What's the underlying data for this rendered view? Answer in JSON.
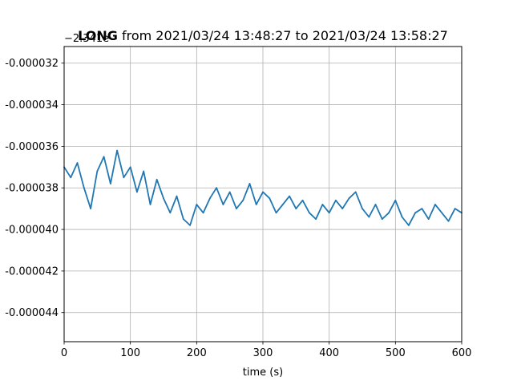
{
  "chart_data": {
    "type": "line",
    "title_bold": "LONG",
    "title_rest": " from 2021/03/24 13:48:27 to 2021/03/24 13:58:27",
    "xlabel": "time (s)",
    "ylabel": "",
    "y_offset_label": "−2.341e",
    "xlim": [
      0,
      600
    ],
    "ylim": [
      -4.54e-05,
      -3.12e-05
    ],
    "x_ticks": [
      0,
      100,
      200,
      300,
      400,
      500,
      600
    ],
    "x_tick_labels": [
      "0",
      "100",
      "200",
      "300",
      "400",
      "500",
      "600"
    ],
    "y_ticks": [
      -3.2e-05,
      -3.4e-05,
      -3.6e-05,
      -3.8e-05,
      -4e-05,
      -4.2e-05,
      -4.4e-05
    ],
    "y_tick_labels": [
      "-0.000032",
      "-0.000034",
      "-0.000036",
      "-0.000038",
      "-0.000040",
      "-0.000042",
      "-0.000044"
    ],
    "grid": true,
    "series": [
      {
        "color": "#1f77b4",
        "x": [
          0,
          10,
          20,
          30,
          40,
          50,
          60,
          70,
          80,
          90,
          100,
          110,
          120,
          130,
          140,
          150,
          160,
          170,
          180,
          190,
          200,
          210,
          220,
          230,
          240,
          250,
          260,
          270,
          280,
          290,
          300,
          310,
          320,
          330,
          340,
          350,
          360,
          370,
          380,
          390,
          400,
          410,
          420,
          430,
          440,
          450,
          460,
          470,
          480,
          490,
          500,
          510,
          520,
          530,
          540,
          550,
          560,
          570,
          580,
          590,
          600
        ],
        "y": [
          -3.7e-05,
          -3.75e-05,
          -3.68e-05,
          -3.8e-05,
          -3.9e-05,
          -3.72e-05,
          -3.65e-05,
          -3.78e-05,
          -3.62e-05,
          -3.75e-05,
          -3.7e-05,
          -3.82e-05,
          -3.72e-05,
          -3.88e-05,
          -3.76e-05,
          -3.85e-05,
          -3.92e-05,
          -3.84e-05,
          -3.95e-05,
          -3.98e-05,
          -3.88e-05,
          -3.92e-05,
          -3.85e-05,
          -3.8e-05,
          -3.88e-05,
          -3.82e-05,
          -3.9e-05,
          -3.86e-05,
          -3.78e-05,
          -3.88e-05,
          -3.82e-05,
          -3.85e-05,
          -3.92e-05,
          -3.88e-05,
          -3.84e-05,
          -3.9e-05,
          -3.86e-05,
          -3.92e-05,
          -3.95e-05,
          -3.88e-05,
          -3.92e-05,
          -3.86e-05,
          -3.9e-05,
          -3.85e-05,
          -3.82e-05,
          -3.9e-05,
          -3.94e-05,
          -3.88e-05,
          -3.95e-05,
          -3.92e-05,
          -3.86e-05,
          -3.94e-05,
          -3.98e-05,
          -3.92e-05,
          -3.9e-05,
          -3.95e-05,
          -3.88e-05,
          -3.92e-05,
          -3.96e-05,
          -3.9e-05,
          -3.92e-05
        ]
      }
    ]
  }
}
